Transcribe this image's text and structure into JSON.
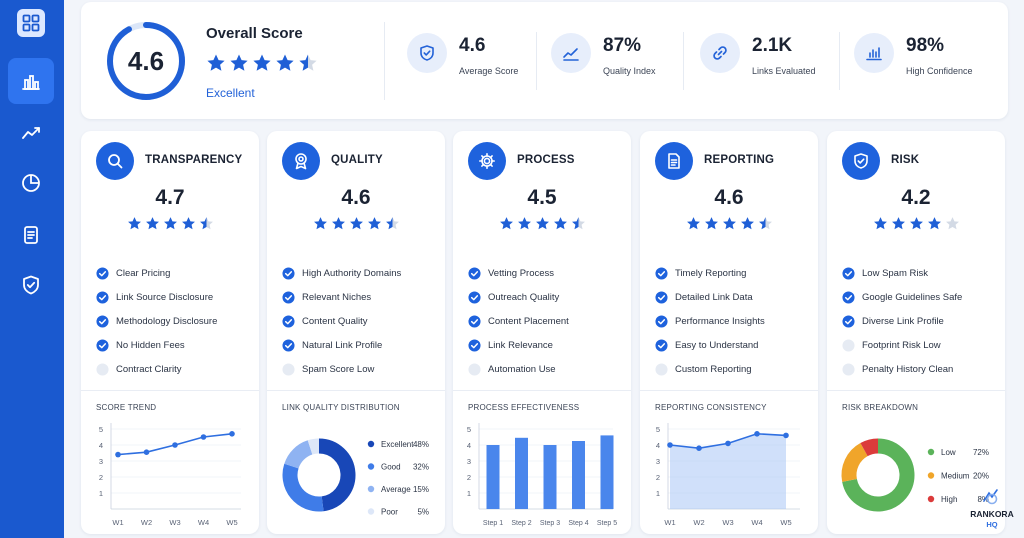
{
  "sidebar": {
    "items": [
      {
        "name": "dashboard-icon",
        "active": false
      },
      {
        "name": "bar-chart-icon",
        "active": true
      },
      {
        "name": "trend-icon",
        "active": false
      },
      {
        "name": "pie-chart-icon",
        "active": false
      },
      {
        "name": "document-icon",
        "active": false
      },
      {
        "name": "shield-icon",
        "active": false
      }
    ]
  },
  "overall": {
    "score": "4.6",
    "title": "Overall Score",
    "rating_label": "Excellent",
    "stars": 4.5
  },
  "stats": [
    {
      "value": "4.6",
      "label": "Average Score",
      "icon": "shield-check-icon"
    },
    {
      "value": "87%",
      "label": "Quality Index",
      "icon": "trend-line-icon"
    },
    {
      "value": "2.1K",
      "label": "Links Evaluated",
      "icon": "link-icon"
    },
    {
      "value": "98%",
      "label": "High Confidence",
      "icon": "bar-chart-icon"
    }
  ],
  "colors": {
    "brand": "#1a59cf",
    "accent": "#2463d8",
    "check": "#1e62dd",
    "star": "#1f5fd6",
    "star_empty": "#d3dae5"
  },
  "cards": [
    {
      "title": "TRANSPARENCY",
      "icon": "search-icon",
      "score": "4.7",
      "stars": 4.5,
      "items": [
        {
          "label": "Clear Pricing",
          "checked": true
        },
        {
          "label": "Link Source Disclosure",
          "checked": true
        },
        {
          "label": "Methodology Disclosure",
          "checked": true
        },
        {
          "label": "No Hidden Fees",
          "checked": true
        },
        {
          "label": "Contract Clarity",
          "checked": false
        }
      ],
      "chart_title": "SCORE TREND"
    },
    {
      "title": "QUALITY",
      "icon": "badge-icon",
      "score": "4.6",
      "stars": 4.5,
      "items": [
        {
          "label": "High Authority Domains",
          "checked": true
        },
        {
          "label": "Relevant Niches",
          "checked": true
        },
        {
          "label": "Content Quality",
          "checked": true
        },
        {
          "label": "Natural Link Profile",
          "checked": true
        },
        {
          "label": "Spam Score Low",
          "checked": false
        }
      ],
      "chart_title": "LINK QUALITY DISTRIBUTION"
    },
    {
      "title": "PROCESS",
      "icon": "gear-icon",
      "score": "4.5",
      "stars": 4.5,
      "items": [
        {
          "label": "Vetting Process",
          "checked": true
        },
        {
          "label": "Outreach Quality",
          "checked": true
        },
        {
          "label": "Content Placement",
          "checked": true
        },
        {
          "label": "Link Relevance",
          "checked": true
        },
        {
          "label": "Automation Use",
          "checked": false
        }
      ],
      "chart_title": "PROCESS EFFECTIVENESS"
    },
    {
      "title": "REPORTING",
      "icon": "document-icon",
      "score": "4.6",
      "stars": 4.5,
      "items": [
        {
          "label": "Timely Reporting",
          "checked": true
        },
        {
          "label": "Detailed Link Data",
          "checked": true
        },
        {
          "label": "Performance Insights",
          "checked": true
        },
        {
          "label": "Easy to Understand",
          "checked": true
        },
        {
          "label": "Custom Reporting",
          "checked": false
        }
      ],
      "chart_title": "REPORTING CONSISTENCY"
    },
    {
      "title": "RISK",
      "icon": "shield-icon",
      "score": "4.2",
      "stars": 4,
      "items": [
        {
          "label": "Low Spam Risk",
          "checked": true
        },
        {
          "label": "Google Guidelines Safe",
          "checked": true
        },
        {
          "label": "Diverse Link Profile",
          "checked": true
        },
        {
          "label": "Footprint Risk Low",
          "checked": false
        },
        {
          "label": "Penalty History Clean",
          "checked": false
        }
      ],
      "chart_title": "RISK BREAKDOWN"
    }
  ],
  "chart_data": [
    {
      "type": "line",
      "x": [
        "W1",
        "W2",
        "W3",
        "W4",
        "W5"
      ],
      "values": [
        3.4,
        3.55,
        4.0,
        4.5,
        4.7
      ],
      "ylim": [
        0,
        5
      ],
      "yticks": [
        "1",
        "2",
        "3",
        "4",
        "5"
      ],
      "title": "SCORE TREND"
    },
    {
      "type": "pie",
      "categories": [
        "Excellent",
        "Good",
        "Average",
        "Poor"
      ],
      "values": [
        48,
        32,
        15,
        5
      ],
      "labels": [
        "48%",
        "32%",
        "15%",
        "5%"
      ],
      "colors": [
        "#1847b7",
        "#3f7ce8",
        "#8fb3f2",
        "#dde7f8"
      ],
      "title": "LINK QUALITY DISTRIBUTION"
    },
    {
      "type": "bar",
      "categories": [
        "Step 1",
        "Step 2",
        "Step 3",
        "Step 4",
        "Step 5"
      ],
      "values": [
        4.0,
        4.45,
        4.0,
        4.25,
        4.6
      ],
      "ylim": [
        0,
        5
      ],
      "yticks": [
        "1",
        "2",
        "3",
        "4",
        "5"
      ],
      "title": "PROCESS EFFECTIVENESS"
    },
    {
      "type": "area",
      "x": [
        "W1",
        "W2",
        "W3",
        "W4",
        "W5"
      ],
      "values": [
        4.0,
        3.8,
        4.1,
        4.7,
        4.6
      ],
      "ylim": [
        0,
        5
      ],
      "yticks": [
        "1",
        "2",
        "3",
        "4",
        "5"
      ],
      "title": "REPORTING CONSISTENCY"
    },
    {
      "type": "pie",
      "categories": [
        "Low",
        "Medium",
        "High"
      ],
      "values": [
        72,
        20,
        8
      ],
      "labels": [
        "72%",
        "20%",
        "8%"
      ],
      "colors": [
        "#5bb35a",
        "#f0a52a",
        "#db3b3b"
      ],
      "title": "RISK BREAKDOWN"
    }
  ],
  "watermark": {
    "line1": "RANKORA",
    "line2": "HQ"
  }
}
